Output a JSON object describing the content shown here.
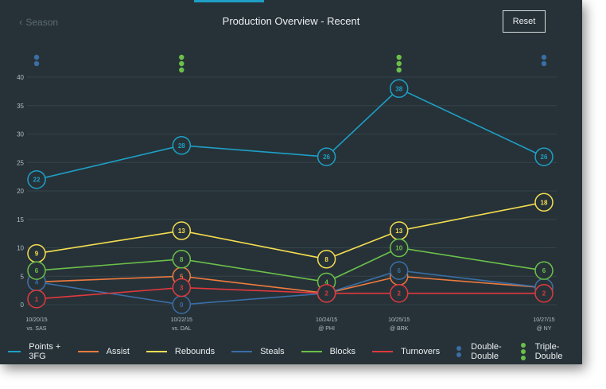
{
  "header": {
    "back_label": "Season",
    "back_icon": "chevron-left-icon",
    "title": "Production Overview - Recent",
    "reset_label": "Reset"
  },
  "chart_data": {
    "type": "line",
    "categories": [
      {
        "date": "10/20/15",
        "opponent": "vs. SAS"
      },
      {
        "date": "10/22/15",
        "opponent": "vs. DAL"
      },
      {
        "date": "10/24/15",
        "opponent": "@ PHI"
      },
      {
        "date": "10/25/15",
        "opponent": "@ BRK"
      },
      {
        "date": "10/27/15",
        "opponent": "@ NY"
      }
    ],
    "x_positions": [
      0,
      2,
      4,
      5,
      7
    ],
    "ylim": [
      0,
      40
    ],
    "yticks": [
      0,
      5,
      10,
      15,
      20,
      25,
      30,
      35,
      40
    ],
    "grid": true,
    "legend_placement": "bottom",
    "series": [
      {
        "name": "Points + 3FG",
        "color": "#1e9fc5",
        "values": [
          22,
          28,
          26,
          38,
          26
        ]
      },
      {
        "name": "Assist",
        "color": "#f07b3f",
        "values": [
          4,
          5,
          2,
          5,
          3
        ]
      },
      {
        "name": "Rebounds",
        "color": "#f5de50",
        "values": [
          9,
          13,
          8,
          13,
          18
        ]
      },
      {
        "name": "Steals",
        "color": "#3a6ea5",
        "values": [
          4,
          0,
          2,
          6,
          3
        ]
      },
      {
        "name": "Blocks",
        "color": "#6cc04a",
        "values": [
          6,
          8,
          4,
          10,
          6
        ]
      },
      {
        "name": "Turnovers",
        "color": "#e0393e",
        "values": [
          1,
          3,
          2,
          2,
          2
        ]
      }
    ],
    "markers": [
      {
        "type": "Double-Double",
        "count": 2,
        "color": "#3a6ea5"
      },
      {
        "type": "Triple-Double",
        "count": 3,
        "color": "#6cc04a"
      },
      {
        "type": "none",
        "count": 0,
        "color": ""
      },
      {
        "type": "Triple-Double",
        "count": 3,
        "color": "#6cc04a"
      },
      {
        "type": "Double-Double",
        "count": 2,
        "color": "#3a6ea5"
      }
    ],
    "marker_legend": [
      {
        "name": "Double-Double",
        "color": "#3a6ea5"
      },
      {
        "name": "Triple-Double",
        "color": "#6cc04a"
      }
    ]
  }
}
